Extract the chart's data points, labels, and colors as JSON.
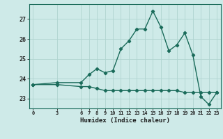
{
  "xlabel": "Humidex (Indice chaleur)",
  "x_ticks": [
    0,
    3,
    6,
    7,
    8,
    9,
    10,
    11,
    12,
    13,
    14,
    15,
    16,
    17,
    18,
    19,
    20,
    21,
    22,
    23
  ],
  "line1_x": [
    0,
    3,
    6,
    7,
    8,
    9,
    10,
    11,
    12,
    13,
    14,
    15,
    16,
    17,
    18,
    19,
    20,
    21,
    22,
    23
  ],
  "line1_y": [
    23.7,
    23.8,
    23.8,
    24.2,
    24.5,
    24.3,
    24.4,
    25.5,
    25.9,
    26.5,
    26.5,
    27.4,
    26.6,
    25.4,
    25.7,
    26.3,
    25.2,
    23.1,
    22.7,
    23.3
  ],
  "line2_x": [
    0,
    3,
    6,
    7,
    8,
    9,
    10,
    11,
    12,
    13,
    14,
    15,
    16,
    17,
    18,
    19,
    20,
    21,
    22,
    23
  ],
  "line2_y": [
    23.7,
    23.7,
    23.6,
    23.6,
    23.5,
    23.4,
    23.4,
    23.4,
    23.4,
    23.4,
    23.4,
    23.4,
    23.4,
    23.4,
    23.4,
    23.3,
    23.3,
    23.3,
    23.3,
    23.3
  ],
  "line_color": "#1a6b5a",
  "bg_color": "#ceeae8",
  "grid_color": "#b0d4d0",
  "ylim": [
    22.5,
    27.75
  ],
  "yticks": [
    23,
    24,
    25,
    26,
    27
  ],
  "marker": "D",
  "marker_size": 2.2,
  "linewidth": 1.0
}
